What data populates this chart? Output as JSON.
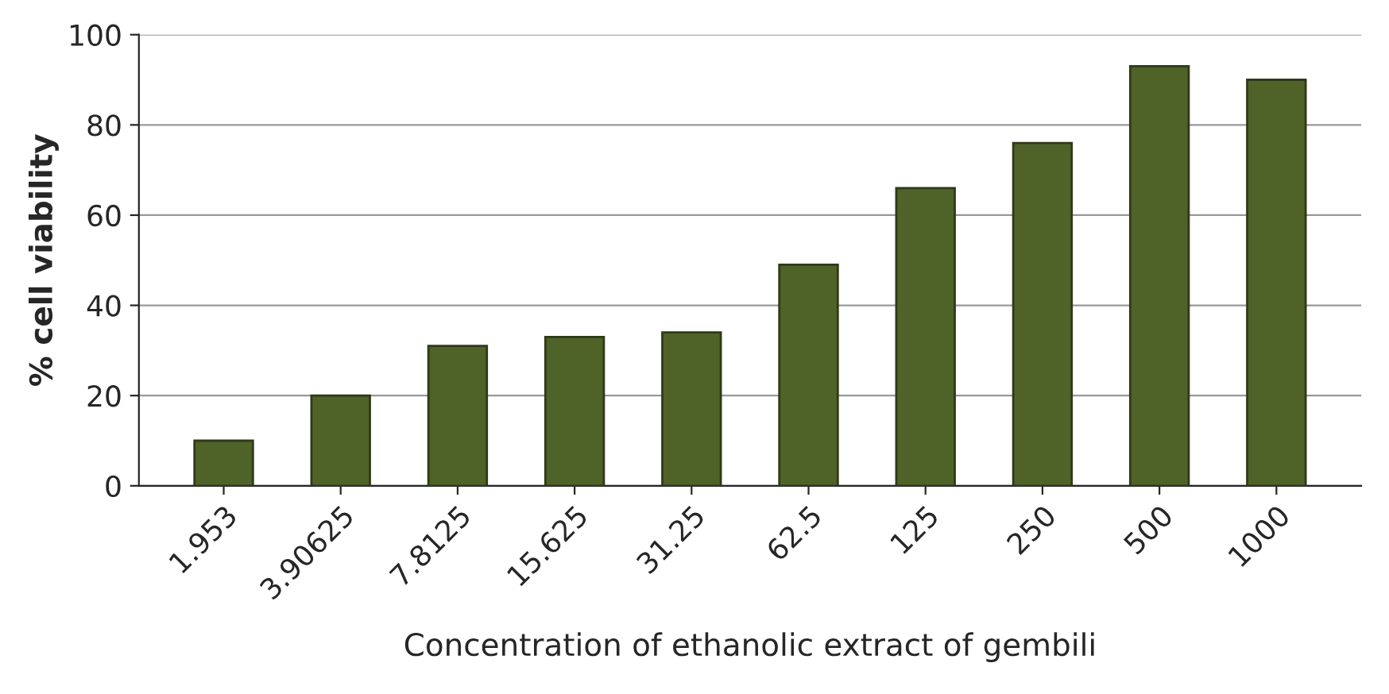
{
  "chart_data": {
    "type": "bar",
    "xlabel": "Concentration of ethanolic extract of gembili",
    "ylabel": "% cell viability",
    "categories": [
      "1.953",
      "3.90625",
      "7.8125",
      "15.625",
      "31.25",
      "62.5",
      "125",
      "250",
      "500",
      "1000"
    ],
    "values": [
      10,
      20,
      31,
      33,
      34,
      49,
      66,
      76,
      93,
      90
    ],
    "color": "#4f6228",
    "ylim": [
      0,
      100
    ],
    "yticks": [
      0,
      20,
      40,
      60,
      80,
      100
    ],
    "grid": "y"
  }
}
